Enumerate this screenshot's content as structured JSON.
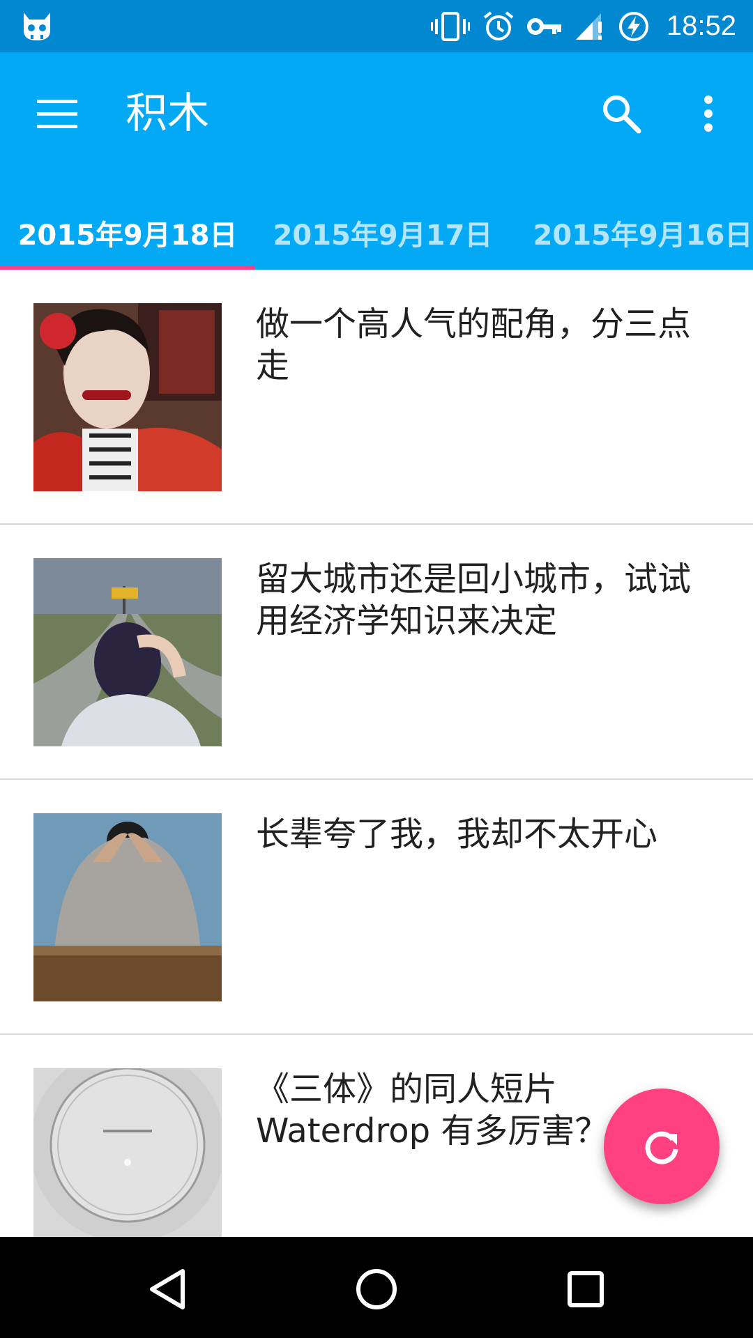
{
  "status_bar": {
    "time": "18:52",
    "icons": [
      "cat-notification-icon",
      "vibrate-icon",
      "alarm-icon",
      "vpn-key-icon",
      "signal-icon",
      "battery-charging-icon"
    ]
  },
  "app_bar": {
    "title": "积木",
    "menu_icon": "hamburger-menu-icon",
    "search_icon": "search-icon",
    "more_icon": "more-vert-icon",
    "background": "#03a9f4",
    "status_background": "#0288d1"
  },
  "tabs": [
    {
      "label": "2015年9月18日",
      "selected": true
    },
    {
      "label": "2015年9月17日",
      "selected": false
    },
    {
      "label": "2015年9月16日",
      "selected": false
    }
  ],
  "accent": "#ff4081",
  "articles": [
    {
      "title": "做一个高人气的配角，分三点走",
      "thumbnail": "photo-woman-costume"
    },
    {
      "title": "留大城市还是回小城市，试试用经济学知识来决定",
      "thumbnail": "photo-crossroads"
    },
    {
      "title": "长辈夸了我，我却不太开心",
      "thumbnail": "photo-man-head-in-hands"
    },
    {
      "title": "《三体》的同人短片 Waterdrop 有多厉害？",
      "thumbnail": "photo-waterdrop"
    }
  ],
  "fab": {
    "icon": "refresh-icon"
  },
  "nav_bar": {
    "icons": [
      "back-icon",
      "home-icon",
      "recents-icon"
    ]
  }
}
